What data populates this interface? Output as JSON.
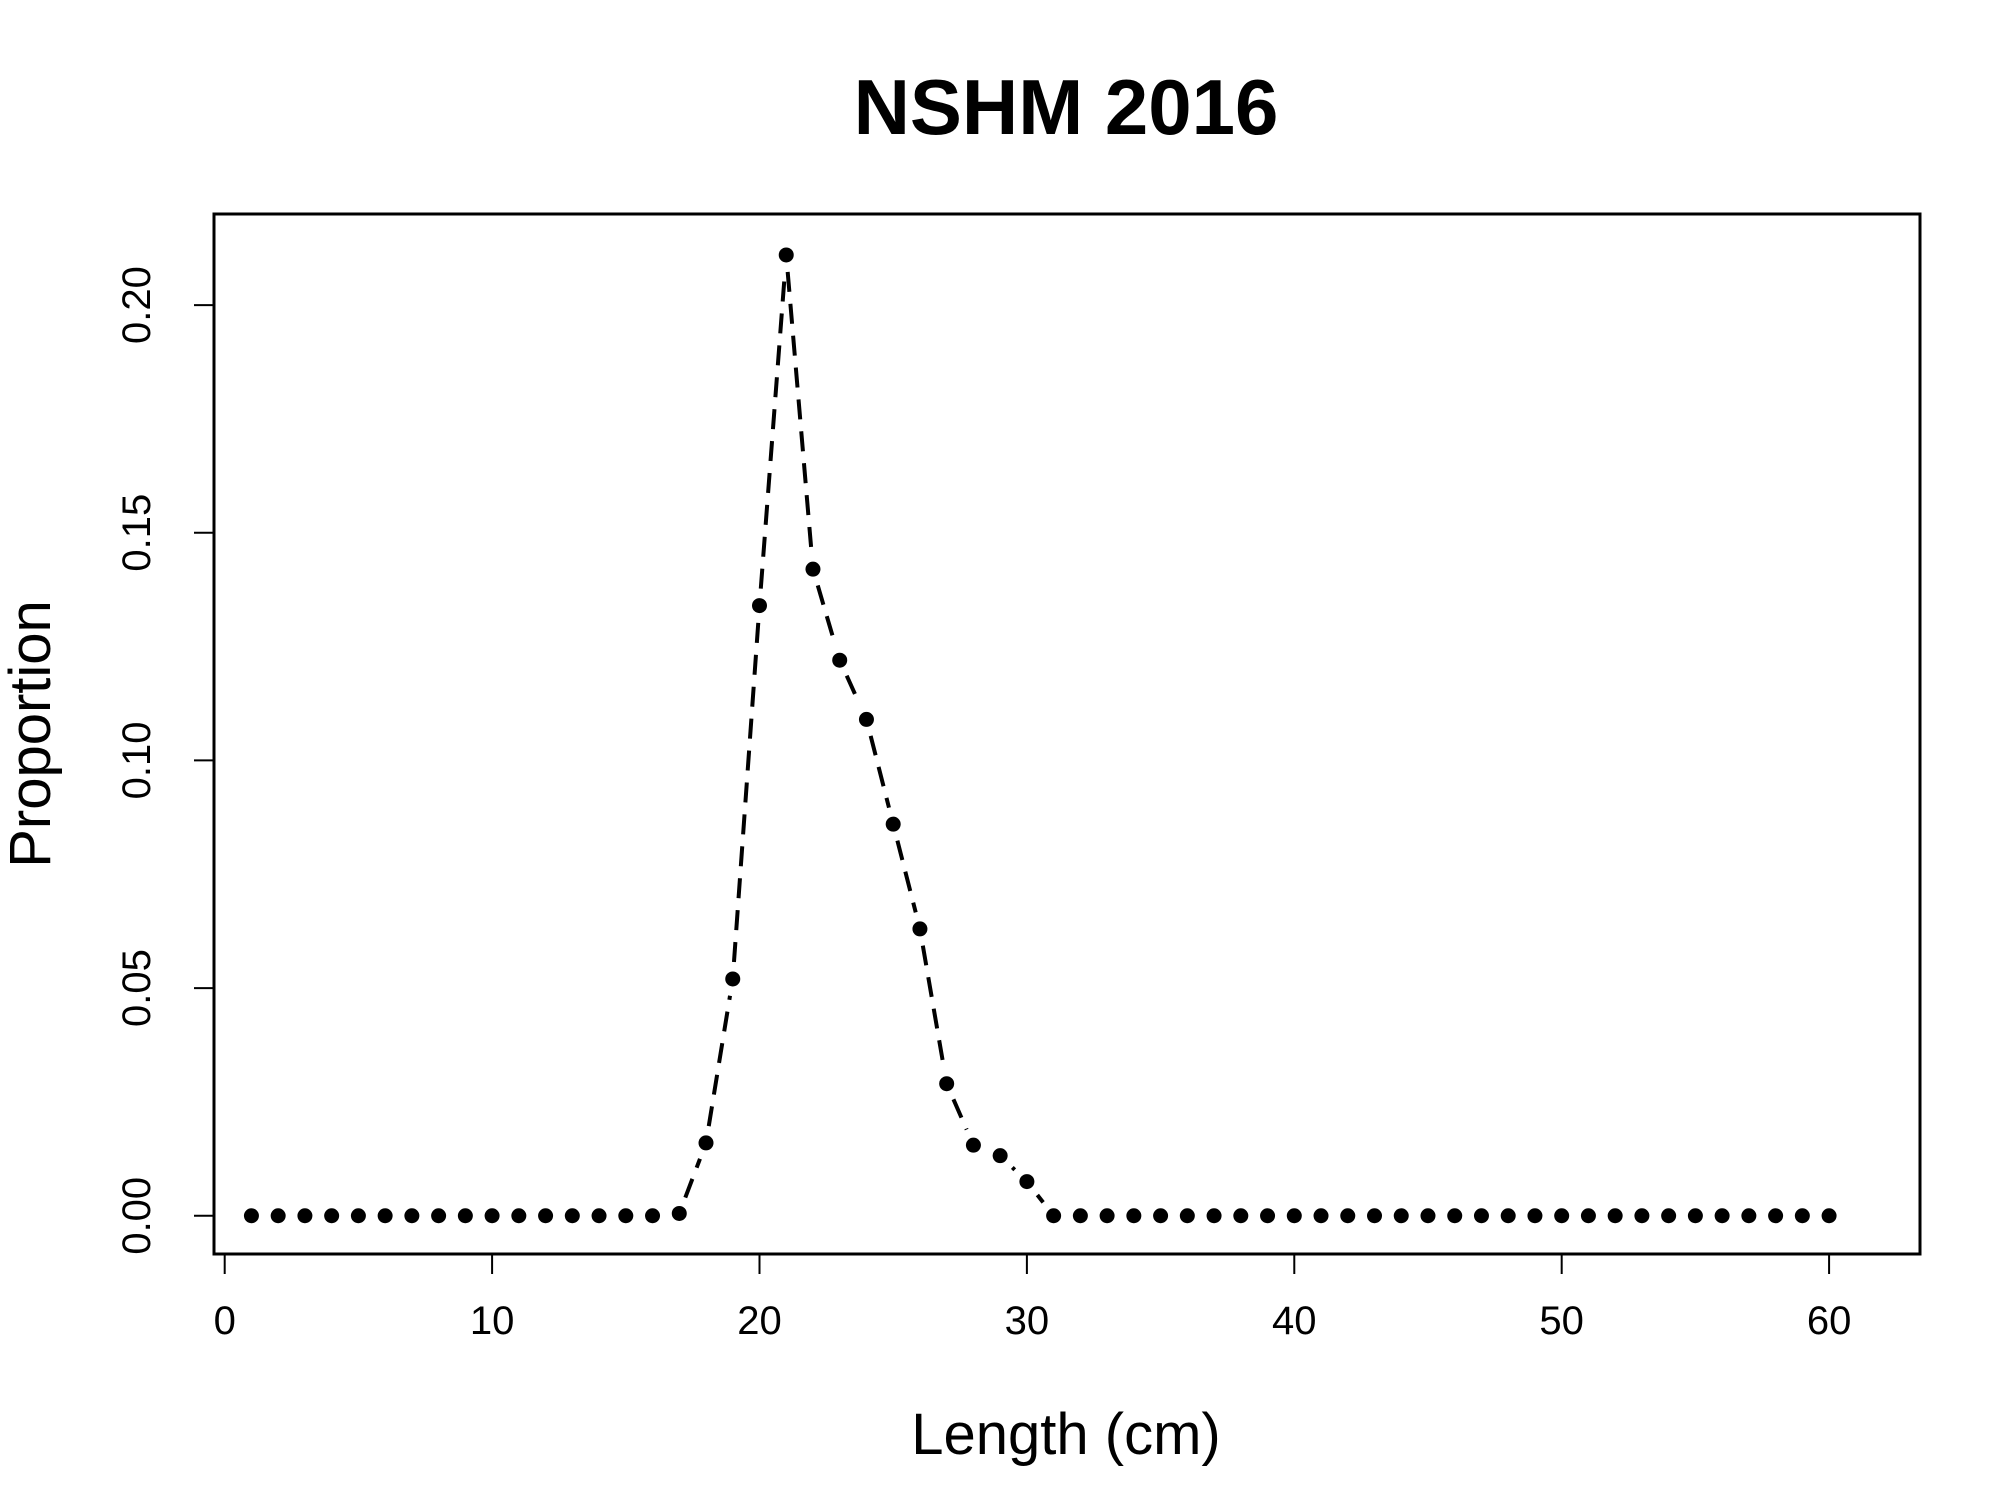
{
  "chart_data": {
    "type": "line",
    "title": "NSHM 2016",
    "xlabel": "Length (cm)",
    "ylabel": "Proportion",
    "xlim": [
      -0.4,
      63.4
    ],
    "ylim": [
      -0.0084,
      0.22
    ],
    "xticks": [
      0,
      10,
      20,
      30,
      40,
      50,
      60
    ],
    "xtick_labels": [
      "0",
      "10",
      "20",
      "30",
      "40",
      "50",
      "60"
    ],
    "yticks": [
      0.0,
      0.05,
      0.1,
      0.15,
      0.2
    ],
    "ytick_labels": [
      "0.00",
      "0.05",
      "0.10",
      "0.15",
      "0.20"
    ],
    "grid": false,
    "line_style": "dashed",
    "marker": "filled-circle",
    "series": [
      {
        "x": [
          1,
          2,
          3,
          4,
          5,
          6,
          7,
          8,
          9,
          10,
          11,
          12,
          13,
          14,
          15,
          16,
          17,
          18,
          19,
          20,
          21,
          22,
          23,
          24,
          25,
          26,
          27,
          28,
          29,
          30,
          31,
          32,
          33,
          34,
          35,
          36,
          37,
          38,
          39,
          40,
          41,
          42,
          43,
          44,
          45,
          46,
          47,
          48,
          49,
          50,
          51,
          52,
          53,
          54,
          55,
          56,
          57,
          58,
          59,
          60
        ],
        "y": [
          0,
          0,
          0,
          0,
          0,
          0,
          0,
          0,
          0,
          0,
          0,
          0,
          0,
          0,
          0,
          0,
          0.0005,
          0.016,
          0.052,
          0.134,
          0.211,
          0.142,
          0.122,
          0.109,
          0.086,
          0.063,
          0.029,
          0.0155,
          0.0132,
          0.0075,
          0,
          0,
          0,
          0,
          0,
          0,
          0,
          0,
          0,
          0,
          0,
          0,
          0,
          0,
          0,
          0,
          0,
          0,
          0,
          0,
          0,
          0,
          0,
          0,
          0,
          0,
          0,
          0,
          0,
          0
        ]
      }
    ]
  }
}
